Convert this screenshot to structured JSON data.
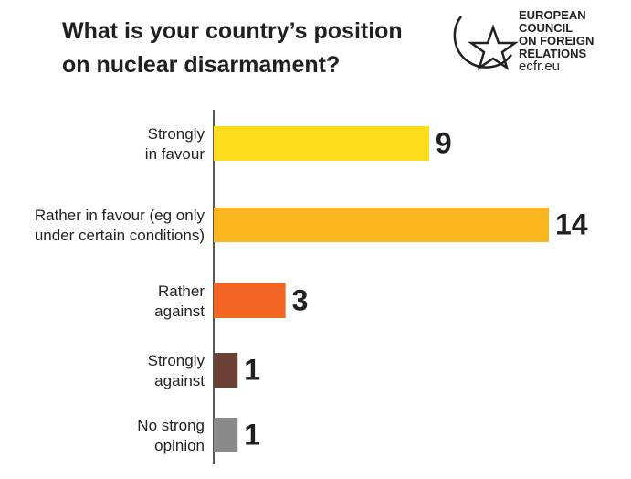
{
  "chart_data": {
    "type": "bar",
    "orientation": "horizontal",
    "title": [
      "What is your country’s position",
      "on nuclear disarmament?"
    ],
    "logo": [
      "EUROPEAN",
      "COUNCIL",
      "ON FOREIGN",
      "RELATIONS",
      "ecfr.eu"
    ],
    "categories": [
      [
        "Strongly",
        "in favour"
      ],
      [
        "Rather in favour (eg only",
        "under certain conditions)"
      ],
      [
        "Rather",
        "against"
      ],
      [
        "Strongly",
        "against"
      ],
      [
        "No strong",
        "opinion"
      ]
    ],
    "values": [
      9,
      14,
      3,
      1,
      1
    ],
    "colors": [
      "#fddc1b",
      "#fbb51f",
      "#f26522",
      "#6b4136",
      "#8a8a8a"
    ]
  }
}
